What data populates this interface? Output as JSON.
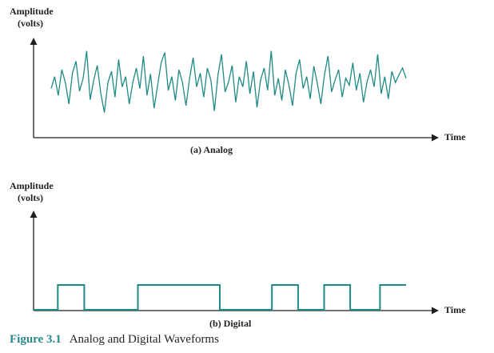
{
  "figure": {
    "number": "Figure 3.1",
    "title": "Analog and Digital Waveforms"
  },
  "colors": {
    "signal": "#1f8a85",
    "axis": "#231f20",
    "caption_number": "#2a8a8a"
  },
  "chart_data": [
    {
      "type": "line",
      "title": "",
      "subtitle": "(a) Analog",
      "ylabel_line1": "Amplitude",
      "ylabel_line2": "(volts)",
      "xlabel": "Time",
      "grid": false,
      "description": "",
      "series": [
        {
          "values": [
            0.48,
            0.62,
            0.4,
            0.7,
            0.55,
            0.3,
            0.66,
            0.8,
            0.45,
            0.6,
            0.92,
            0.35,
            0.58,
            0.75,
            0.42,
            0.2,
            0.55,
            0.68,
            0.38,
            0.82,
            0.5,
            0.62,
            0.3,
            0.55,
            0.72,
            0.48,
            0.86,
            0.4,
            0.65,
            0.25,
            0.52,
            0.78,
            0.9,
            0.46,
            0.62,
            0.34,
            0.7,
            0.55,
            0.28,
            0.6,
            0.84,
            0.5,
            0.66,
            0.38,
            0.72,
            0.58,
            0.22,
            0.64,
            0.88,
            0.44,
            0.56,
            0.75,
            0.32,
            0.62,
            0.5,
            0.8,
            0.42,
            0.68,
            0.26,
            0.58,
            0.72,
            0.46,
            0.92,
            0.4,
            0.6,
            0.34,
            0.7,
            0.52,
            0.28,
            0.66,
            0.82,
            0.48,
            0.62,
            0.36,
            0.74,
            0.54,
            0.3,
            0.64,
            0.86,
            0.44,
            0.58,
            0.7,
            0.38,
            0.6,
            0.52,
            0.78,
            0.46,
            0.66,
            0.32,
            0.56,
            0.7,
            0.5,
            0.88,
            0.42,
            0.62,
            0.36,
            0.68,
            0.55,
            0.64,
            0.72,
            0.6
          ]
        }
      ]
    },
    {
      "type": "line",
      "title": "",
      "subtitle": "(b) Digital",
      "ylabel_line1": "Amplitude",
      "ylabel_line2": "(volts)",
      "xlabel": "Time",
      "grid": false,
      "step": true,
      "description": "",
      "series": [
        {
          "transitions": [
            0.0,
            0.065,
            0.136,
            0.28,
            0.5,
            0.64,
            0.71,
            0.78,
            0.85,
            0.93,
            1.0
          ],
          "levels": [
            0,
            1,
            0,
            1,
            0,
            1,
            0,
            1,
            0,
            1
          ]
        }
      ]
    }
  ]
}
